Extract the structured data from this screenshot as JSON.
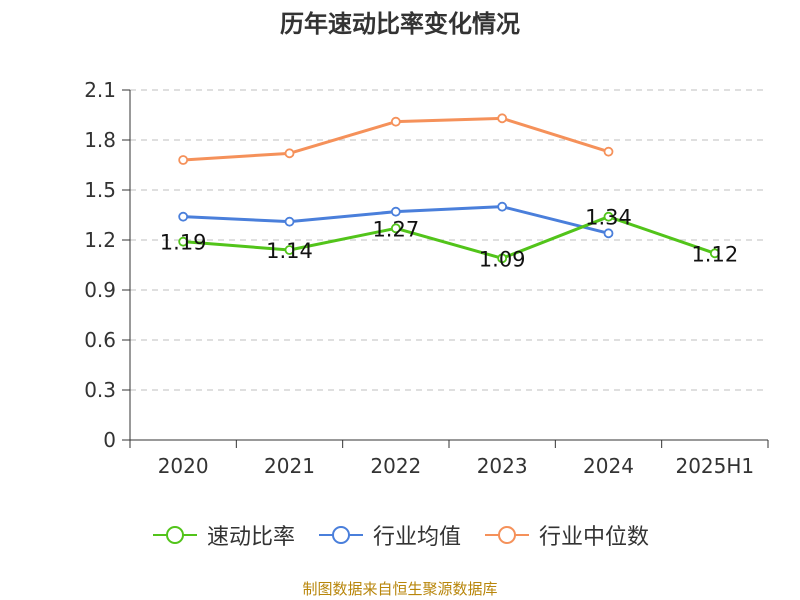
{
  "title": "历年速动比率变化情况",
  "source": "制图数据来自恒生聚源数据库",
  "colors": {
    "series0": "#52c41a",
    "series1": "#4a7fdb",
    "series2": "#f5915a",
    "grid": "#cccccc",
    "axis": "#333333",
    "text": "#333333"
  },
  "chart_data": {
    "type": "line",
    "title": "历年速动比率变化情况",
    "xlabel": "",
    "ylabel": "",
    "categories": [
      "2020",
      "2021",
      "2022",
      "2023",
      "2024",
      "2025H1"
    ],
    "ylim": [
      0,
      2.1
    ],
    "yticks": [
      "0",
      "0.3",
      "0.6",
      "0.9",
      "1.2",
      "1.5",
      "1.8",
      "2.1"
    ],
    "grid": true,
    "legend_position": "bottom",
    "series": [
      {
        "name": "速动比率",
        "values": [
          1.19,
          1.14,
          1.27,
          1.09,
          1.34,
          1.12
        ],
        "labels": [
          "1.19",
          "1.14",
          "1.27",
          "1.09",
          "1.34",
          "1.12"
        ]
      },
      {
        "name": "行业均值",
        "values": [
          1.34,
          1.31,
          1.37,
          1.4,
          1.24,
          null
        ]
      },
      {
        "name": "行业中位数",
        "values": [
          1.68,
          1.72,
          1.91,
          1.93,
          1.73,
          null
        ]
      }
    ]
  }
}
